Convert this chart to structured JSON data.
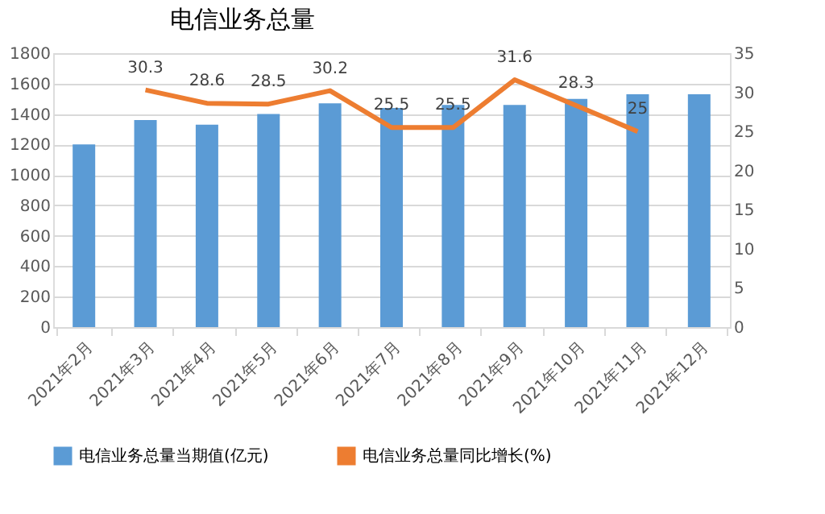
{
  "chart_data": {
    "type": "bar",
    "title": "电信业务总量",
    "categories": [
      "2021年2月",
      "2021年3月",
      "2021年4月",
      "2021年5月",
      "2021年6月",
      "2021年7月",
      "2021年8月",
      "2021年9月",
      "2021年10月",
      "2021年11月",
      "2021年12月"
    ],
    "series": [
      {
        "name": "电信业务总量当期值(亿元)",
        "color": "#5b9bd5",
        "type": "bar",
        "values": [
          1200,
          1360,
          1330,
          1400,
          1470,
          1440,
          1460,
          1460,
          1500,
          1530,
          1530
        ]
      },
      {
        "name": "电信业务总量同比增长(%)",
        "color": "#ed7d31",
        "type": "line",
        "axis": "y2",
        "values": [
          null,
          30.3,
          28.6,
          28.5,
          30.2,
          25.5,
          25.5,
          31.6,
          28.3,
          25,
          null
        ],
        "value_labels": [
          null,
          "30.3",
          "28.6",
          "28.5",
          "30.2",
          "25.5",
          "25.5",
          "31.6",
          "28.3",
          "25",
          null
        ]
      }
    ],
    "ylim": [
      0,
      1800
    ],
    "yticks": [
      0,
      200,
      400,
      600,
      800,
      1000,
      1200,
      1400,
      1600,
      1800
    ],
    "y2lim": [
      0,
      35
    ],
    "y2ticks": [
      0,
      5,
      10,
      15,
      20,
      25,
      30,
      35
    ],
    "grid": "y",
    "legend": "bottom",
    "marker": "none",
    "line_style": "solid"
  }
}
